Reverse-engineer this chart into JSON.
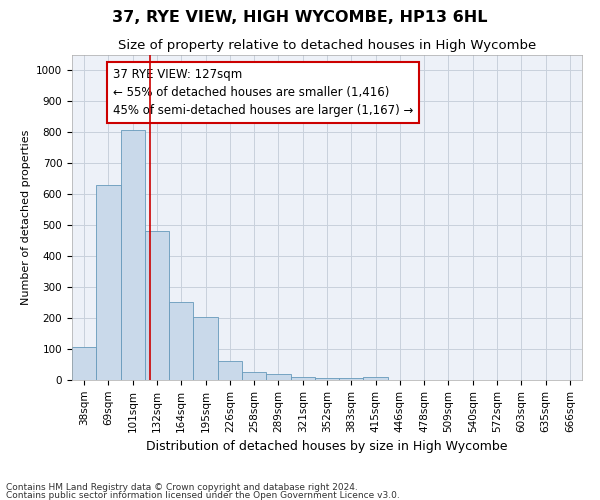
{
  "title": "37, RYE VIEW, HIGH WYCOMBE, HP13 6HL",
  "subtitle": "Size of property relative to detached houses in High Wycombe",
  "xlabel": "Distribution of detached houses by size in High Wycombe",
  "ylabel": "Number of detached properties",
  "categories": [
    "38sqm",
    "69sqm",
    "101sqm",
    "132sqm",
    "164sqm",
    "195sqm",
    "226sqm",
    "258sqm",
    "289sqm",
    "321sqm",
    "352sqm",
    "383sqm",
    "415sqm",
    "446sqm",
    "478sqm",
    "509sqm",
    "540sqm",
    "572sqm",
    "603sqm",
    "635sqm",
    "666sqm"
  ],
  "values": [
    107,
    630,
    808,
    480,
    252,
    205,
    62,
    27,
    18,
    11,
    5,
    5,
    11,
    0,
    0,
    0,
    0,
    0,
    0,
    0,
    0
  ],
  "bar_color": "#c9d9ea",
  "bar_edge_color": "#6699bb",
  "bar_edge_width": 0.6,
  "vline_x": 2.72,
  "vline_color": "#cc0000",
  "annotation_line1": "37 RYE VIEW: 127sqm",
  "annotation_line2": "← 55% of detached houses are smaller (1,416)",
  "annotation_line3": "45% of semi-detached houses are larger (1,167) →",
  "annotation_box_color": "#ffffff",
  "annotation_box_edge_color": "#cc0000",
  "annotation_fontsize": 8.5,
  "ylim": [
    0,
    1050
  ],
  "yticks": [
    0,
    100,
    200,
    300,
    400,
    500,
    600,
    700,
    800,
    900,
    1000
  ],
  "grid_color": "#c8d0dc",
  "background_color": "#edf1f8",
  "footnote1": "Contains HM Land Registry data © Crown copyright and database right 2024.",
  "footnote2": "Contains public sector information licensed under the Open Government Licence v3.0.",
  "title_fontsize": 11.5,
  "subtitle_fontsize": 9.5,
  "xlabel_fontsize": 9,
  "ylabel_fontsize": 8,
  "tick_fontsize": 7.5,
  "footnote_fontsize": 6.5
}
